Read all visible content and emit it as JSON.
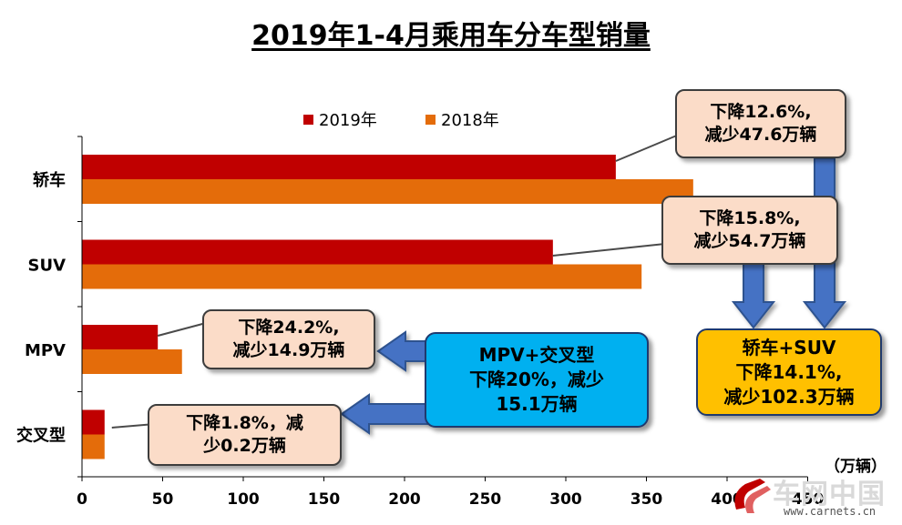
{
  "chart_data": {
    "type": "bar",
    "orientation": "horizontal",
    "title": "2019年1-4月乘用车分车型销量",
    "categories": [
      "轿车",
      "SUV",
      "MPV",
      "交叉型"
    ],
    "series": [
      {
        "name": "2019年",
        "color": "#c00000",
        "values": [
          331,
          292,
          47,
          14
        ]
      },
      {
        "name": "2018年",
        "color": "#e46c0a",
        "values": [
          379,
          347,
          62,
          14
        ]
      }
    ],
    "x_ticks": [
      "0",
      "50",
      "100",
      "150",
      "200",
      "250",
      "300",
      "350",
      "400",
      "450"
    ],
    "xlim": [
      0,
      450
    ],
    "unit": "（万辆）",
    "legend_position": "top",
    "grid": false
  },
  "callouts": {
    "sedan": {
      "line1": "下降12.6%,",
      "line2": "减少47.6万辆"
    },
    "suv": {
      "line1": "下降15.8%,",
      "line2": "减少54.7万辆"
    },
    "mpv": {
      "line1": "下降24.2%,",
      "line2": "减少14.9万辆"
    },
    "crossover": {
      "line1": "下降1.8%，减",
      "line2": "少0.2万辆"
    }
  },
  "summary_mpv": {
    "line1": "MPV+交叉型",
    "line2": "下降20%，减少",
    "line3": "15.1万辆"
  },
  "summary_sedan_suv": {
    "line1": "轿车+SUV",
    "line2": "下降14.1%,",
    "line3": "减少102.3万辆"
  },
  "watermark": {
    "name": "车网中国",
    "url": "www.carnets.cn"
  },
  "colors": {
    "arrow": "#4472c4",
    "arrow_border": "#2f528f"
  }
}
